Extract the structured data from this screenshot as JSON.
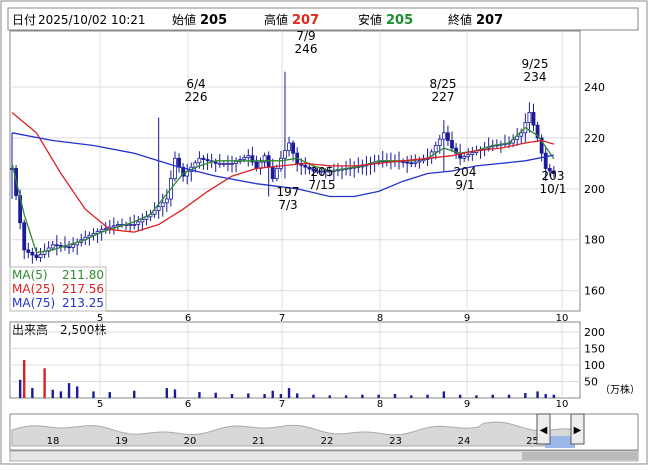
{
  "header": {
    "date_label": "日付",
    "date_value": "2025/10/02 10:21",
    "open_label": "始値",
    "open_value": "205",
    "high_label": "高値",
    "high_value": "207",
    "low_label": "安値",
    "low_value": "205",
    "close_label": "終値",
    "close_value": "207"
  },
  "legend": {
    "ma5_label": "MA(5)",
    "ma5_value": "211.80",
    "ma25_label": "MA(25)",
    "ma25_value": "217.56",
    "ma75_label": "MA(75)",
    "ma75_value": "213.25"
  },
  "volume_panel": {
    "title": "出来高　2,500株",
    "unit": "（万株）"
  },
  "colors": {
    "ma5": "#2e8b2e",
    "ma25": "#e02020",
    "ma75": "#2233cc",
    "candle": "#1a1a9a",
    "volume_normal": "#1a1a9a",
    "volume_high": "#e02020"
  },
  "chart_data": [
    {
      "type": "candlestick",
      "title": "",
      "y_ticks": [
        "160",
        "180",
        "200",
        "220",
        "240"
      ],
      "ylim": [
        152,
        262
      ],
      "x_tick_labels": [
        "5",
        "6",
        "7",
        "8",
        "9",
        "10"
      ],
      "annotations": [
        {
          "label_top": "6/4",
          "label_bottom": "226",
          "kind": "high"
        },
        {
          "label_top": "7/9",
          "label_bottom": "246",
          "kind": "high"
        },
        {
          "label_top": "8/25",
          "label_bottom": "227",
          "kind": "high"
        },
        {
          "label_top": "9/25",
          "label_bottom": "234",
          "kind": "high"
        },
        {
          "label_top": "197",
          "label_bottom": "7/3",
          "kind": "low"
        },
        {
          "label_top": "205",
          "label_bottom": "7/15",
          "kind": "low"
        },
        {
          "label_top": "204",
          "label_bottom": "9/1",
          "kind": "low"
        },
        {
          "label_top": "203",
          "label_bottom": "10/1",
          "kind": "low"
        }
      ],
      "price_points": [
        {
          "x": 0,
          "y": 208
        },
        {
          "x": 3,
          "y": 176
        },
        {
          "x": 6,
          "y": 173
        },
        {
          "x": 10,
          "y": 178
        },
        {
          "x": 14,
          "y": 177
        },
        {
          "x": 18,
          "y": 181
        },
        {
          "x": 22,
          "y": 184
        },
        {
          "x": 26,
          "y": 186
        },
        {
          "x": 30,
          "y": 186
        },
        {
          "x": 34,
          "y": 190
        },
        {
          "x": 38,
          "y": 196
        },
        {
          "x": 40,
          "y": 212
        },
        {
          "x": 42,
          "y": 205
        },
        {
          "x": 46,
          "y": 212
        },
        {
          "x": 50,
          "y": 210
        },
        {
          "x": 54,
          "y": 210
        },
        {
          "x": 58,
          "y": 213
        },
        {
          "x": 60,
          "y": 208
        },
        {
          "x": 62,
          "y": 213
        },
        {
          "x": 64,
          "y": 204
        },
        {
          "x": 66,
          "y": 212
        },
        {
          "x": 68,
          "y": 218
        },
        {
          "x": 70,
          "y": 210
        },
        {
          "x": 74,
          "y": 207
        },
        {
          "x": 78,
          "y": 207
        },
        {
          "x": 82,
          "y": 208
        },
        {
          "x": 86,
          "y": 209
        },
        {
          "x": 90,
          "y": 211
        },
        {
          "x": 94,
          "y": 211
        },
        {
          "x": 98,
          "y": 210
        },
        {
          "x": 102,
          "y": 212
        },
        {
          "x": 106,
          "y": 222
        },
        {
          "x": 108,
          "y": 216
        },
        {
          "x": 110,
          "y": 212
        },
        {
          "x": 114,
          "y": 215
        },
        {
          "x": 118,
          "y": 217
        },
        {
          "x": 122,
          "y": 218
        },
        {
          "x": 125,
          "y": 222
        },
        {
          "x": 127,
          "y": 230
        },
        {
          "x": 129,
          "y": 220
        },
        {
          "x": 131,
          "y": 208
        },
        {
          "x": 133,
          "y": 206
        }
      ],
      "series": [
        {
          "name": "MA(5)",
          "values": [
            {
              "x": 0,
              "y": 210
            },
            {
              "x": 3,
              "y": 190
            },
            {
              "x": 6,
              "y": 175
            },
            {
              "x": 10,
              "y": 176
            },
            {
              "x": 14,
              "y": 178
            },
            {
              "x": 18,
              "y": 180
            },
            {
              "x": 22,
              "y": 183
            },
            {
              "x": 26,
              "y": 185
            },
            {
              "x": 30,
              "y": 187
            },
            {
              "x": 34,
              "y": 190
            },
            {
              "x": 38,
              "y": 198
            },
            {
              "x": 42,
              "y": 206
            },
            {
              "x": 46,
              "y": 209
            },
            {
              "x": 50,
              "y": 211
            },
            {
              "x": 54,
              "y": 211
            },
            {
              "x": 58,
              "y": 211
            },
            {
              "x": 62,
              "y": 211
            },
            {
              "x": 66,
              "y": 211
            },
            {
              "x": 70,
              "y": 212
            },
            {
              "x": 74,
              "y": 209
            },
            {
              "x": 78,
              "y": 207
            },
            {
              "x": 82,
              "y": 208
            },
            {
              "x": 86,
              "y": 209
            },
            {
              "x": 90,
              "y": 211
            },
            {
              "x": 94,
              "y": 211
            },
            {
              "x": 98,
              "y": 211
            },
            {
              "x": 102,
              "y": 212
            },
            {
              "x": 106,
              "y": 216
            },
            {
              "x": 110,
              "y": 214
            },
            {
              "x": 114,
              "y": 215
            },
            {
              "x": 118,
              "y": 217
            },
            {
              "x": 122,
              "y": 218
            },
            {
              "x": 126,
              "y": 224
            },
            {
              "x": 129,
              "y": 221
            },
            {
              "x": 133,
              "y": 211.8
            }
          ]
        },
        {
          "name": "MA(25)",
          "values": [
            {
              "x": 0,
              "y": 230
            },
            {
              "x": 6,
              "y": 222
            },
            {
              "x": 12,
              "y": 206
            },
            {
              "x": 18,
              "y": 192
            },
            {
              "x": 24,
              "y": 184
            },
            {
              "x": 30,
              "y": 183
            },
            {
              "x": 36,
              "y": 186
            },
            {
              "x": 42,
              "y": 192
            },
            {
              "x": 48,
              "y": 199
            },
            {
              "x": 54,
              "y": 205
            },
            {
              "x": 60,
              "y": 208
            },
            {
              "x": 66,
              "y": 209
            },
            {
              "x": 72,
              "y": 210
            },
            {
              "x": 78,
              "y": 209
            },
            {
              "x": 84,
              "y": 209
            },
            {
              "x": 90,
              "y": 210
            },
            {
              "x": 96,
              "y": 211
            },
            {
              "x": 102,
              "y": 212
            },
            {
              "x": 108,
              "y": 213
            },
            {
              "x": 114,
              "y": 215
            },
            {
              "x": 120,
              "y": 216
            },
            {
              "x": 126,
              "y": 218
            },
            {
              "x": 130,
              "y": 219
            },
            {
              "x": 133,
              "y": 217.56
            }
          ]
        },
        {
          "name": "MA(75)",
          "values": [
            {
              "x": 0,
              "y": 222
            },
            {
              "x": 10,
              "y": 219
            },
            {
              "x": 20,
              "y": 217
            },
            {
              "x": 30,
              "y": 214
            },
            {
              "x": 40,
              "y": 209
            },
            {
              "x": 50,
              "y": 205
            },
            {
              "x": 60,
              "y": 202
            },
            {
              "x": 70,
              "y": 200
            },
            {
              "x": 78,
              "y": 197
            },
            {
              "x": 84,
              "y": 197
            },
            {
              "x": 90,
              "y": 199
            },
            {
              "x": 96,
              "y": 203
            },
            {
              "x": 102,
              "y": 206
            },
            {
              "x": 108,
              "y": 207
            },
            {
              "x": 114,
              "y": 209
            },
            {
              "x": 120,
              "y": 210
            },
            {
              "x": 126,
              "y": 211
            },
            {
              "x": 133,
              "y": 213.25
            }
          ]
        }
      ]
    },
    {
      "type": "bar",
      "title": "出来高",
      "y_ticks": [
        "50",
        "100",
        "150",
        "200"
      ],
      "ylim": [
        0,
        230
      ],
      "x_tick_labels": [
        "5",
        "6",
        "7",
        "8",
        "9",
        "10"
      ],
      "values": [
        {
          "x": 2,
          "y": 55
        },
        {
          "x": 3,
          "y": 115
        },
        {
          "x": 5,
          "y": 30
        },
        {
          "x": 8,
          "y": 90
        },
        {
          "x": 10,
          "y": 25
        },
        {
          "x": 12,
          "y": 20
        },
        {
          "x": 14,
          "y": 45
        },
        {
          "x": 16,
          "y": 35
        },
        {
          "x": 20,
          "y": 20
        },
        {
          "x": 24,
          "y": 18
        },
        {
          "x": 30,
          "y": 22
        },
        {
          "x": 38,
          "y": 30
        },
        {
          "x": 40,
          "y": 26
        },
        {
          "x": 46,
          "y": 18
        },
        {
          "x": 50,
          "y": 16
        },
        {
          "x": 54,
          "y": 12
        },
        {
          "x": 58,
          "y": 14
        },
        {
          "x": 62,
          "y": 12
        },
        {
          "x": 64,
          "y": 22
        },
        {
          "x": 66,
          "y": 12
        },
        {
          "x": 68,
          "y": 30
        },
        {
          "x": 70,
          "y": 14
        },
        {
          "x": 74,
          "y": 10
        },
        {
          "x": 78,
          "y": 8
        },
        {
          "x": 82,
          "y": 8
        },
        {
          "x": 86,
          "y": 10
        },
        {
          "x": 90,
          "y": 10
        },
        {
          "x": 94,
          "y": 12
        },
        {
          "x": 98,
          "y": 8
        },
        {
          "x": 102,
          "y": 10
        },
        {
          "x": 106,
          "y": 20
        },
        {
          "x": 110,
          "y": 10
        },
        {
          "x": 114,
          "y": 8
        },
        {
          "x": 118,
          "y": 10
        },
        {
          "x": 122,
          "y": 10
        },
        {
          "x": 126,
          "y": 15
        },
        {
          "x": 129,
          "y": 20
        },
        {
          "x": 131,
          "y": 12
        },
        {
          "x": 133,
          "y": 10
        }
      ],
      "high_volume_x": [
        3,
        8
      ]
    }
  ],
  "navigator": {
    "labels": [
      "18",
      "19",
      "20",
      "21",
      "22",
      "23",
      "24",
      "25"
    ],
    "left_arrow": "◀",
    "right_arrow": "▶"
  }
}
